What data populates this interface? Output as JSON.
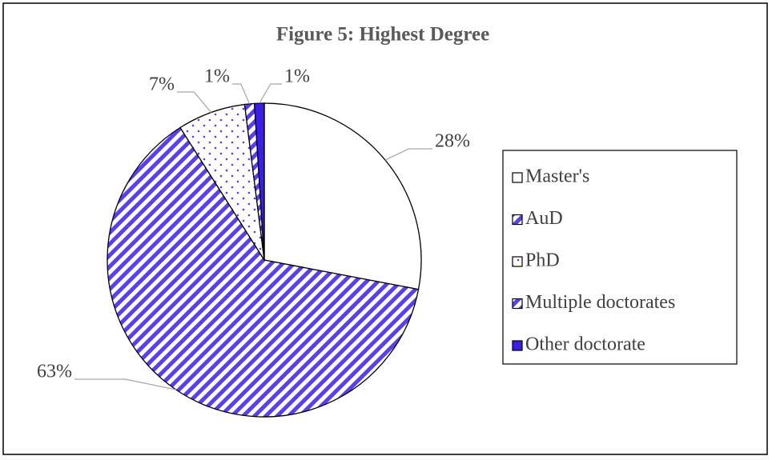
{
  "chart_data": {
    "type": "pie",
    "title": "Figure 5: Highest Degree",
    "categories": [
      "Master's",
      "AuD",
      "PhD",
      "Multiple doctorates",
      "Other doctorate"
    ],
    "values": [
      28,
      63,
      7,
      1,
      1
    ],
    "value_labels": [
      "28%",
      "63%",
      "7%",
      "1%",
      "1%"
    ],
    "colors": [
      "#ffffff",
      "#5a3ff0",
      "#5a3ff0",
      "#5a3ff0",
      "#3a1fe8"
    ],
    "patterns": [
      "solid",
      "stripes",
      "dots",
      "stripes",
      "solid"
    ],
    "legend": "right"
  }
}
